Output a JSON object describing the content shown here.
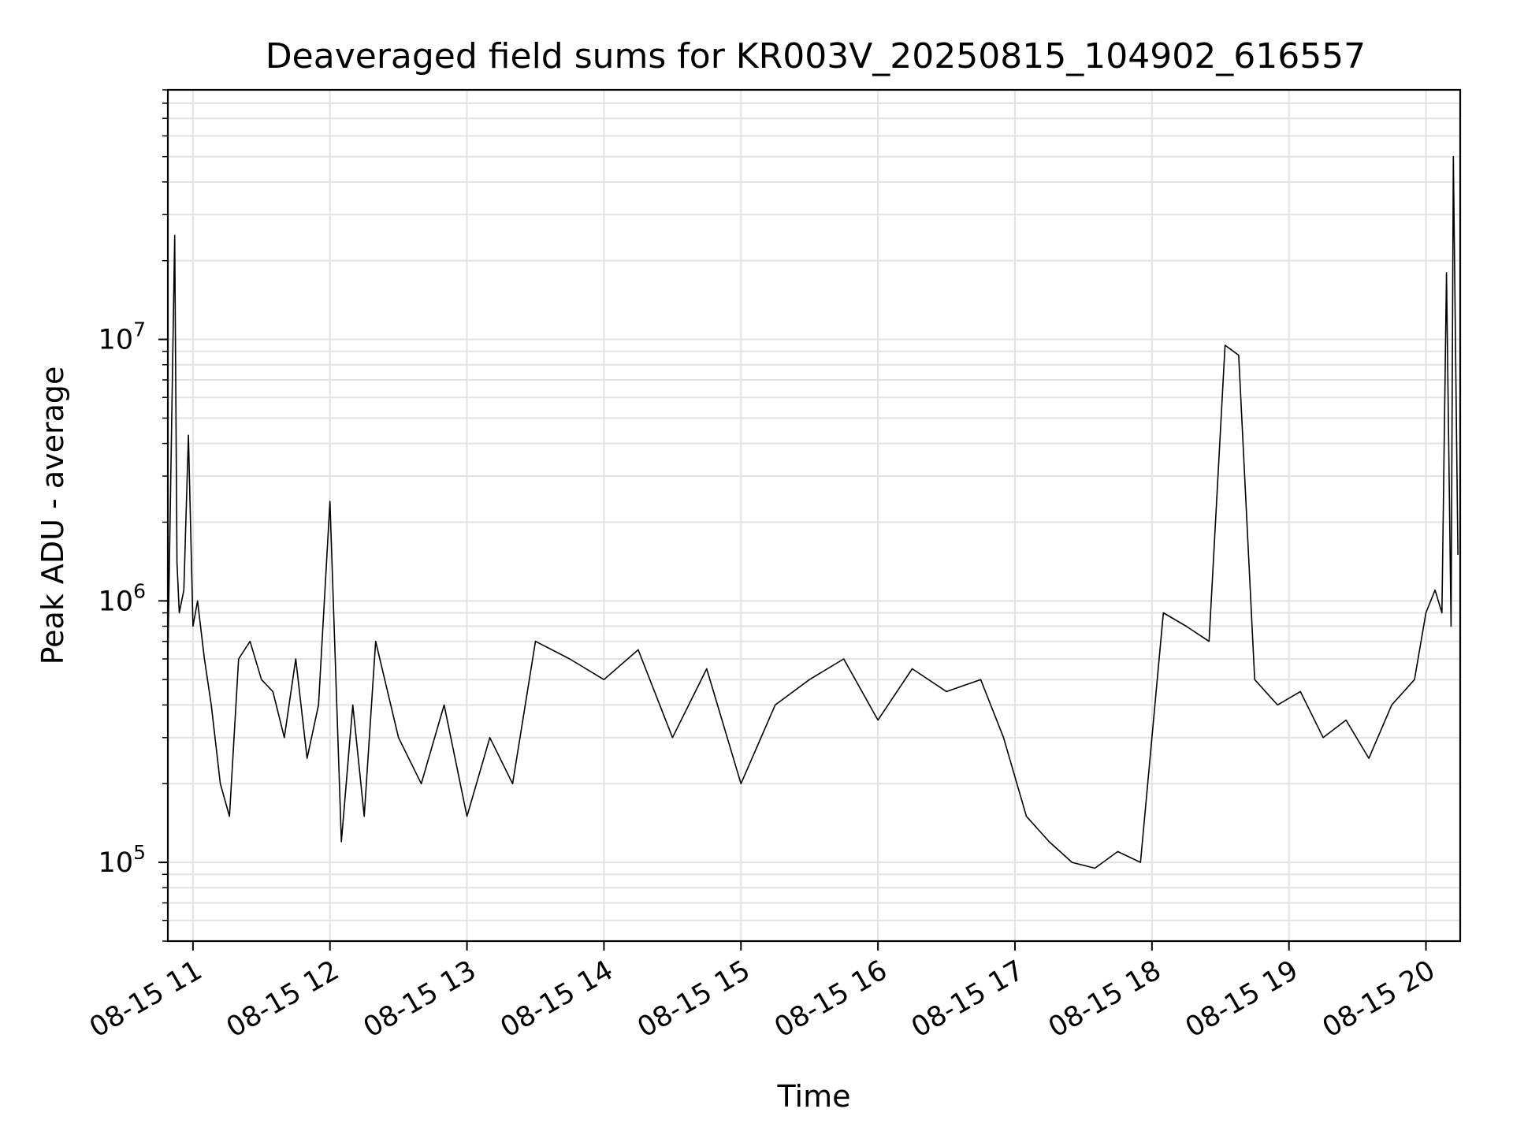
{
  "chart_data": {
    "type": "line",
    "title": "Deaveraged field sums for KR003V_20250815_104902_616557",
    "xlabel": "Time",
    "ylabel": "Peak ADU - average",
    "yscale": "log",
    "ylim": [
      50000,
      90000000
    ],
    "xlim": [
      "2025-08-15 10:49",
      "2025-08-15 20:15"
    ],
    "grid": true,
    "line_color": "#000000",
    "x_tick_labels": [
      "08-15 11",
      "08-15 12",
      "08-15 13",
      "08-15 14",
      "08-15 15",
      "08-15 16",
      "08-15 17",
      "08-15 18",
      "08-15 19",
      "08-15 20"
    ],
    "x_tick_values": [
      "2025-08-15 11:00",
      "2025-08-15 12:00",
      "2025-08-15 13:00",
      "2025-08-15 14:00",
      "2025-08-15 15:00",
      "2025-08-15 16:00",
      "2025-08-15 17:00",
      "2025-08-15 18:00",
      "2025-08-15 19:00",
      "2025-08-15 20:00"
    ],
    "y_ticks": [
      {
        "base": "10",
        "exp": "5",
        "value": 100000
      },
      {
        "base": "10",
        "exp": "6",
        "value": 1000000
      },
      {
        "base": "10",
        "exp": "7",
        "value": 10000000
      }
    ],
    "series": [
      {
        "x": [
          "2025-08-15 10:49",
          "2025-08-15 10:52",
          "2025-08-15 10:53",
          "2025-08-15 10:54",
          "2025-08-15 10:56",
          "2025-08-15 10:58",
          "2025-08-15 11:00",
          "2025-08-15 11:02",
          "2025-08-15 11:05",
          "2025-08-15 11:08",
          "2025-08-15 11:12",
          "2025-08-15 11:16",
          "2025-08-15 11:20",
          "2025-08-15 11:25",
          "2025-08-15 11:30",
          "2025-08-15 11:35",
          "2025-08-15 11:40",
          "2025-08-15 11:45",
          "2025-08-15 11:50",
          "2025-08-15 11:55",
          "2025-08-15 12:00",
          "2025-08-15 12:05",
          "2025-08-15 12:10",
          "2025-08-15 12:15",
          "2025-08-15 12:20",
          "2025-08-15 12:30",
          "2025-08-15 12:40",
          "2025-08-15 12:50",
          "2025-08-15 13:00",
          "2025-08-15 13:10",
          "2025-08-15 13:20",
          "2025-08-15 13:30",
          "2025-08-15 13:45",
          "2025-08-15 14:00",
          "2025-08-15 14:15",
          "2025-08-15 14:30",
          "2025-08-15 14:45",
          "2025-08-15 15:00",
          "2025-08-15 15:15",
          "2025-08-15 15:30",
          "2025-08-15 15:45",
          "2025-08-15 16:00",
          "2025-08-15 16:15",
          "2025-08-15 16:30",
          "2025-08-15 16:45",
          "2025-08-15 16:55",
          "2025-08-15 17:05",
          "2025-08-15 17:15",
          "2025-08-15 17:25",
          "2025-08-15 17:35",
          "2025-08-15 17:45",
          "2025-08-15 17:55",
          "2025-08-15 18:05",
          "2025-08-15 18:15",
          "2025-08-15 18:25",
          "2025-08-15 18:32",
          "2025-08-15 18:38",
          "2025-08-15 18:45",
          "2025-08-15 18:55",
          "2025-08-15 19:05",
          "2025-08-15 19:15",
          "2025-08-15 19:25",
          "2025-08-15 19:35",
          "2025-08-15 19:45",
          "2025-08-15 19:55",
          "2025-08-15 20:00",
          "2025-08-15 20:04",
          "2025-08-15 20:07",
          "2025-08-15 20:09",
          "2025-08-15 20:11",
          "2025-08-15 20:12",
          "2025-08-15 20:14"
        ],
        "values": [
          600000,
          25000000,
          1400000,
          900000,
          1100000,
          4300000,
          800000,
          1000000,
          600000,
          400000,
          200000,
          150000,
          600000,
          700000,
          500000,
          450000,
          300000,
          600000,
          250000,
          400000,
          2400000,
          120000,
          400000,
          150000,
          700000,
          300000,
          200000,
          400000,
          150000,
          300000,
          200000,
          700000,
          600000,
          500000,
          650000,
          300000,
          550000,
          200000,
          400000,
          500000,
          600000,
          350000,
          550000,
          450000,
          500000,
          300000,
          150000,
          120000,
          100000,
          95000,
          110000,
          100000,
          900000,
          800000,
          700000,
          9500000,
          8700000,
          500000,
          400000,
          450000,
          300000,
          350000,
          250000,
          400000,
          500000,
          900000,
          1100000,
          900000,
          18000000,
          800000,
          50000000,
          1500000
        ]
      }
    ]
  }
}
